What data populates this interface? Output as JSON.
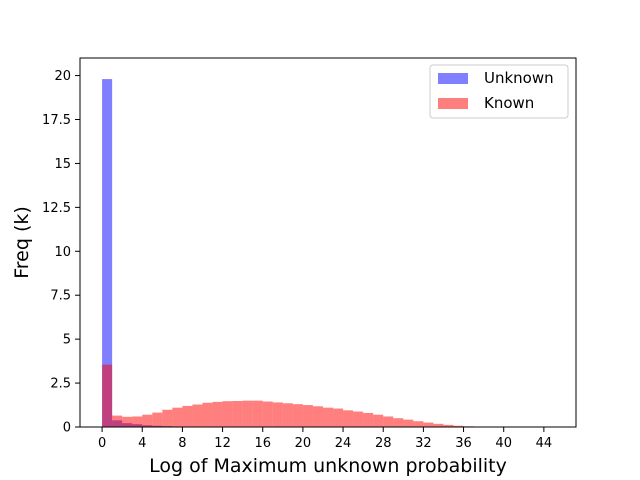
{
  "chart_data": {
    "type": "histogram",
    "xlabel": "Log of Maximum unknown probability",
    "ylabel": "Freq (k)",
    "bin_width": 1,
    "xlim": [
      -2.2,
      47.2
    ],
    "ylim": [
      0,
      21
    ],
    "xticks": [
      0,
      4,
      8,
      12,
      16,
      20,
      24,
      28,
      32,
      36,
      40,
      44
    ],
    "yticks": [
      0,
      2.5,
      5,
      7.5,
      10,
      12.5,
      15,
      17.5,
      20
    ],
    "ytick_labels": [
      "0",
      "2.5",
      "5",
      "7.5",
      "10",
      "12.5",
      "15",
      "17.5",
      "20"
    ],
    "legend_position": "top-right",
    "series": [
      {
        "name": "Unknown",
        "color": "#0000ff",
        "alpha": 0.5,
        "bin_start": 0,
        "values": [
          19.8,
          0.38,
          0.22,
          0.16,
          0.1,
          0.07,
          0.05,
          0.03,
          0.02,
          0.02,
          0.01,
          0.01,
          0.01
        ]
      },
      {
        "name": "Known",
        "color": "#ff0000",
        "alpha": 0.5,
        "bin_start": 0,
        "values": [
          3.55,
          0.65,
          0.58,
          0.6,
          0.7,
          0.82,
          0.98,
          1.1,
          1.2,
          1.28,
          1.38,
          1.43,
          1.47,
          1.48,
          1.5,
          1.5,
          1.45,
          1.4,
          1.35,
          1.3,
          1.25,
          1.18,
          1.1,
          1.05,
          0.95,
          0.88,
          0.8,
          0.7,
          0.6,
          0.5,
          0.42,
          0.33,
          0.25,
          0.18,
          0.12,
          0.07,
          0.04,
          0.02,
          0.01,
          0.01,
          0.005,
          0.003,
          0.002,
          0.001,
          0.001
        ]
      }
    ]
  }
}
